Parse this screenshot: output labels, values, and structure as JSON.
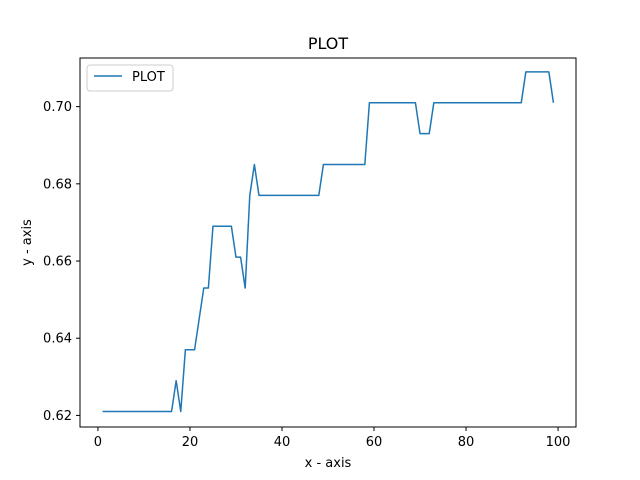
{
  "chart_data": {
    "type": "line",
    "title": "PLOT",
    "xlabel": "x - axis",
    "ylabel": "y - axis",
    "xlim": [
      -3.9,
      103.9
    ],
    "ylim": [
      0.617,
      0.7126
    ],
    "x_ticks": [
      0,
      20,
      40,
      60,
      80,
      100
    ],
    "x_tick_labels": [
      "0",
      "20",
      "40",
      "60",
      "80",
      "100"
    ],
    "y_ticks": [
      0.62,
      0.64,
      0.66,
      0.68,
      0.7
    ],
    "y_tick_labels": [
      "0.62",
      "0.64",
      "0.66",
      "0.68",
      "0.70"
    ],
    "grid": false,
    "legend": {
      "position": "top-left",
      "entries": [
        "PLOT"
      ]
    },
    "series": [
      {
        "name": "PLOT",
        "color": "#1f77b4",
        "x": [
          1,
          2,
          3,
          4,
          5,
          6,
          7,
          8,
          9,
          10,
          11,
          12,
          13,
          14,
          15,
          16,
          17,
          18,
          19,
          20,
          21,
          22,
          23,
          24,
          25,
          26,
          27,
          28,
          29,
          30,
          31,
          32,
          33,
          34,
          35,
          36,
          37,
          38,
          39,
          40,
          41,
          42,
          43,
          44,
          45,
          46,
          47,
          48,
          49,
          50,
          51,
          52,
          53,
          54,
          55,
          56,
          57,
          58,
          59,
          60,
          61,
          62,
          63,
          64,
          65,
          66,
          67,
          68,
          69,
          70,
          71,
          72,
          73,
          74,
          75,
          76,
          77,
          78,
          79,
          80,
          81,
          82,
          83,
          84,
          85,
          86,
          87,
          88,
          89,
          90,
          91,
          92,
          93,
          94,
          95,
          96,
          97,
          98,
          99
        ],
        "y": [
          0.621,
          0.621,
          0.621,
          0.621,
          0.621,
          0.621,
          0.621,
          0.621,
          0.621,
          0.621,
          0.621,
          0.621,
          0.621,
          0.621,
          0.621,
          0.621,
          0.629,
          0.621,
          0.637,
          0.637,
          0.637,
          0.645,
          0.653,
          0.653,
          0.669,
          0.669,
          0.669,
          0.669,
          0.669,
          0.661,
          0.661,
          0.653,
          0.677,
          0.685,
          0.677,
          0.677,
          0.677,
          0.677,
          0.677,
          0.677,
          0.677,
          0.677,
          0.677,
          0.677,
          0.677,
          0.677,
          0.677,
          0.677,
          0.685,
          0.685,
          0.685,
          0.685,
          0.685,
          0.685,
          0.685,
          0.685,
          0.685,
          0.685,
          0.701,
          0.701,
          0.701,
          0.701,
          0.701,
          0.701,
          0.701,
          0.701,
          0.701,
          0.701,
          0.701,
          0.693,
          0.693,
          0.693,
          0.701,
          0.701,
          0.701,
          0.701,
          0.701,
          0.701,
          0.701,
          0.701,
          0.701,
          0.701,
          0.701,
          0.701,
          0.701,
          0.701,
          0.701,
          0.701,
          0.701,
          0.701,
          0.701,
          0.701,
          0.709,
          0.709,
          0.709,
          0.709,
          0.709,
          0.709,
          0.701
        ]
      }
    ]
  }
}
